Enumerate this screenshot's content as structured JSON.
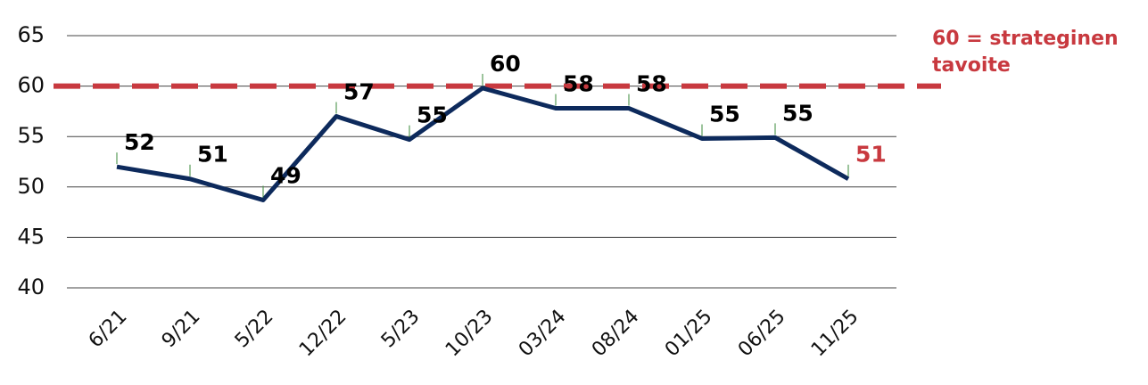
{
  "chart_data": {
    "type": "line",
    "categories": [
      "6/21",
      "9/21",
      "5/22",
      "12/22",
      "5/23",
      "10/23",
      "03/24",
      "08/24",
      "01/25",
      "06/25",
      "11/25"
    ],
    "series": [
      {
        "color": "#0d2a5c",
        "values": [
          52.0,
          50.8,
          48.7,
          57.0,
          54.7,
          59.8,
          57.8,
          57.8,
          54.8,
          54.9,
          50.8
        ],
        "value_labels": [
          "52",
          "51",
          "49",
          "57",
          "55",
          "60",
          "58",
          "58",
          "55",
          "55",
          "51"
        ],
        "value_label_colors": [
          "#000000",
          "#000000",
          "#000000",
          "#000000",
          "#000000",
          "#000000",
          "#000000",
          "#000000",
          "#000000",
          "#000000",
          "#c8393f"
        ]
      }
    ],
    "ylim": [
      40,
      65
    ],
    "yticks": [
      40,
      45,
      50,
      55,
      60,
      65
    ],
    "grid": true,
    "target": {
      "value": 60,
      "color": "#c8393f",
      "label_lines": [
        "60 = strateginen",
        "tavoite"
      ]
    }
  }
}
